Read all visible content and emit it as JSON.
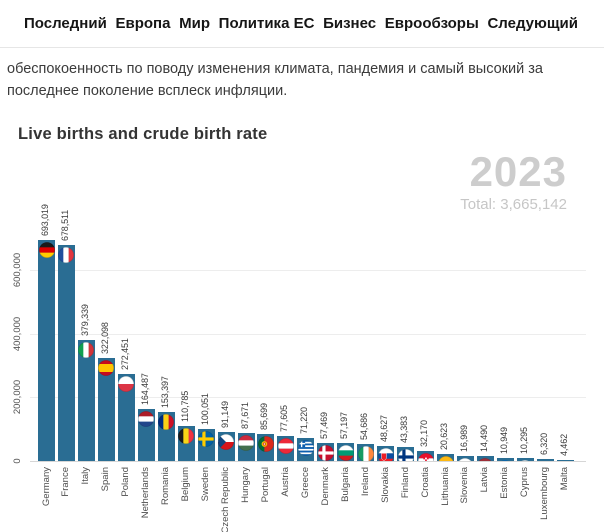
{
  "nav": {
    "items": [
      {
        "name": "nav-item-latest",
        "label": "Последний"
      },
      {
        "name": "nav-item-europe",
        "label": "Европа"
      },
      {
        "name": "nav-item-world",
        "label": "Мир"
      },
      {
        "name": "nav-item-eu-policy",
        "label": "Политика ЕС"
      },
      {
        "name": "nav-item-business",
        "label": "Бизнес"
      },
      {
        "name": "nav-item-euroviews",
        "label": "Еврообзоры"
      },
      {
        "name": "nav-item-next",
        "label": "Следующий"
      }
    ]
  },
  "article": {
    "paragraph": "обеспокоенность по поводу изменения климата, пандемия и самый высокий за\nпоследнее поколение всплеск инфляции."
  },
  "chart_data": {
    "type": "bar",
    "title": "Live births and crude birth rate",
    "year": "2023",
    "total": 3665142,
    "total_label": "Total: 3,665,142",
    "categories": [
      "Germany",
      "France",
      "Italy",
      "Spain",
      "Poland",
      "Netherlands",
      "Romania",
      "Belgium",
      "Sweden",
      "Czech Republic",
      "Hungary",
      "Portugal",
      "Austria",
      "Greece",
      "Denmark",
      "Bulgaria",
      "Ireland",
      "Slovakia",
      "Finland",
      "Croatia",
      "Lithuania",
      "Slovenia",
      "Latvia",
      "Estonia",
      "Cyprus",
      "Luxembourg",
      "Malta"
    ],
    "values": [
      693019,
      678511,
      379339,
      322098,
      272451,
      164487,
      153397,
      110785,
      100051,
      91149,
      87671,
      85699,
      77605,
      71220,
      57469,
      57197,
      54686,
      48627,
      43383,
      32170,
      20623,
      16989,
      14490,
      10949,
      10295,
      6320,
      4462
    ],
    "value_labels": [
      "693,019",
      "678,511",
      "379,339",
      "322,098",
      "272,451",
      "164,487",
      "153,397",
      "110,785",
      "100,051",
      "91,149",
      "87,671",
      "85,699",
      "77,605",
      "71,220",
      "57,469",
      "57,197",
      "54,686",
      "48,627",
      "43,383",
      "32,170",
      "20,623",
      "16,989",
      "14,490",
      "10,949",
      "10,295",
      "6,320",
      "4,462"
    ],
    "flags": [
      "flag-germany",
      "flag-france",
      "flag-italy",
      "flag-spain",
      "flag-poland",
      "flag-netherlands",
      "flag-romania",
      "flag-belgium",
      "flag-sweden",
      "flag-czech-republic",
      "flag-hungary",
      "flag-portugal",
      "flag-austria",
      "flag-greece",
      "flag-denmark",
      "flag-bulgaria",
      "flag-ireland",
      "flag-slovakia",
      "flag-finland",
      "flag-croatia",
      "flag-lithuania",
      "flag-slovenia",
      "flag-latvia",
      "flag-estonia",
      "flag-cyprus",
      "flag-luxembourg",
      "flag-malta"
    ],
    "bar_color": "#2a6d93",
    "grid": true,
    "legend": "none",
    "y_ticks": [
      {
        "value": 0,
        "label": "0"
      },
      {
        "value": 200000,
        "label": "200,000"
      },
      {
        "value": 400000,
        "label": "400,000"
      },
      {
        "value": 600000,
        "label": "600,000"
      }
    ],
    "ylim": [
      0,
      700000
    ],
    "x_label_rotation": -90,
    "value_label_rotation": -90
  }
}
